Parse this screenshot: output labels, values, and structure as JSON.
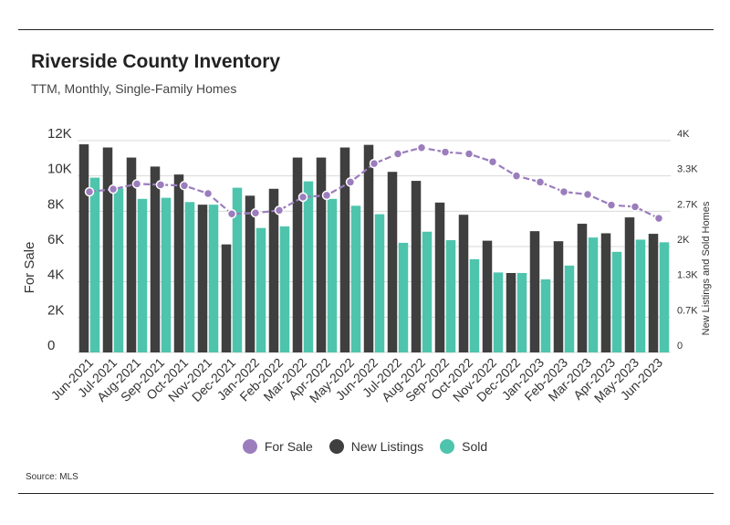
{
  "title": "Riverside County Inventory",
  "subtitle": "TTM, Monthly, Single-Family Homes",
  "source": "Source: MLS",
  "colors": {
    "for_sale": "#9b7dbd",
    "new_listings": "#3f3f3f",
    "sold": "#4ec4ad",
    "grid": "#d9d9d9"
  },
  "chart_data": {
    "type": "bar",
    "categories": [
      "Jun-2021",
      "Jul-2021",
      "Aug-2021",
      "Sep-2021",
      "Oct-2021",
      "Nov-2021",
      "Dec-2021",
      "Jan-2022",
      "Feb-2022",
      "Mar-2022",
      "Apr-2022",
      "May-2022",
      "Jun-2022",
      "Jul-2022",
      "Aug-2022",
      "Sep-2022",
      "Oct-2022",
      "Nov-2022",
      "Dec-2022",
      "Jan-2023",
      "Feb-2023",
      "Mar-2023",
      "Apr-2023",
      "May-2023",
      "Jun-2023"
    ],
    "ylabel": "For Sale",
    "y2label": "New Listings and Sold Homes",
    "ylim": [
      0,
      12000
    ],
    "y2lim": [
      0,
      4000
    ],
    "yticks": [
      "0",
      "2K",
      "4K",
      "6K",
      "8K",
      "10K",
      "12K"
    ],
    "y2ticks": [
      "0",
      "0.7K",
      "1.3K",
      "2K",
      "2.7K",
      "3.3K",
      "4K"
    ],
    "grid": true,
    "legend_position": "bottom",
    "series": [
      {
        "name": "For Sale",
        "kind": "line",
        "axis": "left",
        "values": [
          9100,
          9250,
          9550,
          9500,
          9450,
          9000,
          7850,
          7900,
          8050,
          8800,
          8900,
          9650,
          10700,
          11250,
          11600,
          11350,
          11250,
          10800,
          10000,
          9650,
          9100,
          8950,
          8350,
          8250,
          7600
        ]
      },
      {
        "name": "New Listings",
        "kind": "bar",
        "axis": "right",
        "values": [
          3930,
          3870,
          3680,
          3510,
          3360,
          2790,
          2040,
          2960,
          3090,
          3680,
          3680,
          3870,
          3920,
          3410,
          3240,
          2830,
          2600,
          2110,
          1500,
          2290,
          2100,
          2430,
          2250,
          2550,
          2240
        ]
      },
      {
        "name": "Sold",
        "kind": "bar",
        "axis": "right",
        "values": [
          3300,
          3100,
          2900,
          2920,
          2840,
          2790,
          3110,
          2350,
          2380,
          3230,
          2900,
          2770,
          2610,
          2070,
          2280,
          2120,
          1760,
          1510,
          1500,
          1380,
          1640,
          2170,
          1900,
          2130,
          2080
        ]
      }
    ]
  }
}
